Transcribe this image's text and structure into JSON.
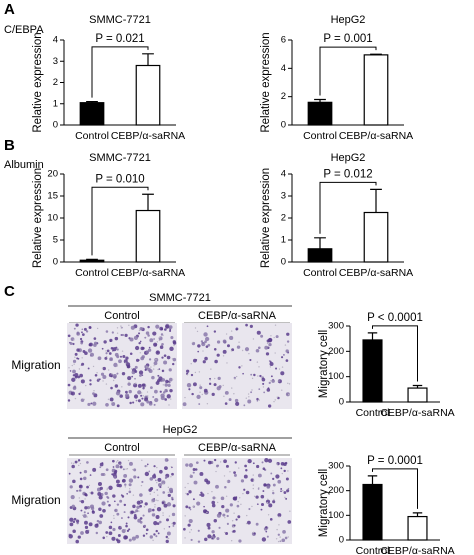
{
  "panels": [
    {
      "label": "A",
      "row_label": "C/EBPA"
    },
    {
      "label": "B",
      "row_label": "Albumin"
    },
    {
      "label": "C"
    }
  ],
  "micrographs": [
    {
      "title": "SMMC-7721",
      "columns": [
        "Control",
        "CEBP/α-saRNA"
      ],
      "row_label": "Migration"
    },
    {
      "title": "HepG2",
      "columns": [
        "Control",
        "CEBP/α-saRNA"
      ],
      "row_label": "Migration"
    }
  ],
  "chart_data": [
    {
      "type": "bar",
      "title": "SMMC-7721",
      "ylabel": "Relative expression",
      "annotation": "P = 0.021",
      "categories": [
        "Control",
        "CEBP/α-saRNA"
      ],
      "values": [
        1.05,
        2.8
      ],
      "errors": [
        0.05,
        0.55
      ],
      "colors": [
        "#000000",
        "#ffffff"
      ],
      "ylim": [
        0,
        4
      ],
      "yticks": [
        0,
        1,
        2,
        3,
        4
      ]
    },
    {
      "type": "bar",
      "title": "HepG2",
      "ylabel": "Relative expression",
      "annotation": "P = 0.001",
      "categories": [
        "Control",
        "CEBP/α-saRNA"
      ],
      "values": [
        1.6,
        4.95
      ],
      "errors": [
        0.2,
        0.05
      ],
      "colors": [
        "#000000",
        "#ffffff"
      ],
      "ylim": [
        0,
        6
      ],
      "yticks": [
        0,
        2,
        4,
        6
      ]
    },
    {
      "type": "bar",
      "title": "SMMC-7721",
      "ylabel": "Relative expression",
      "annotation": "P = 0.010",
      "categories": [
        "Control",
        "CEBP/α-saRNA"
      ],
      "values": [
        0.4,
        11.7
      ],
      "errors": [
        0.2,
        3.7
      ],
      "colors": [
        "#000000",
        "#ffffff"
      ],
      "ylim": [
        0,
        20
      ],
      "yticks": [
        0,
        5,
        10,
        15,
        20
      ]
    },
    {
      "type": "bar",
      "title": "HepG2",
      "ylabel": "Relative expression",
      "annotation": "P = 0.012",
      "categories": [
        "Control",
        "CEBP/α-saRNA"
      ],
      "values": [
        0.6,
        2.25
      ],
      "errors": [
        0.5,
        1.05
      ],
      "colors": [
        "#000000",
        "#ffffff"
      ],
      "ylim": [
        0,
        4
      ],
      "yticks": [
        0,
        1,
        2,
        3,
        4
      ]
    },
    {
      "type": "bar",
      "ylabel": "Migratory cell",
      "annotation": "P < 0.0001",
      "categories": [
        "Control",
        "CEBP/α-saRNA"
      ],
      "values": [
        245,
        55
      ],
      "errors": [
        28,
        10
      ],
      "colors": [
        "#000000",
        "#ffffff"
      ],
      "ylim": [
        0,
        300
      ],
      "yticks": [
        0,
        100,
        200,
        300
      ]
    },
    {
      "type": "bar",
      "ylabel": "Migratory cell",
      "annotation": "P = 0.0001",
      "categories": [
        "Control",
        "CEBP/α-saRNA"
      ],
      "values": [
        225,
        95
      ],
      "errors": [
        35,
        15
      ],
      "colors": [
        "#000000",
        "#ffffff"
      ],
      "ylim": [
        0,
        300
      ],
      "yticks": [
        0,
        100,
        200,
        300
      ]
    }
  ]
}
